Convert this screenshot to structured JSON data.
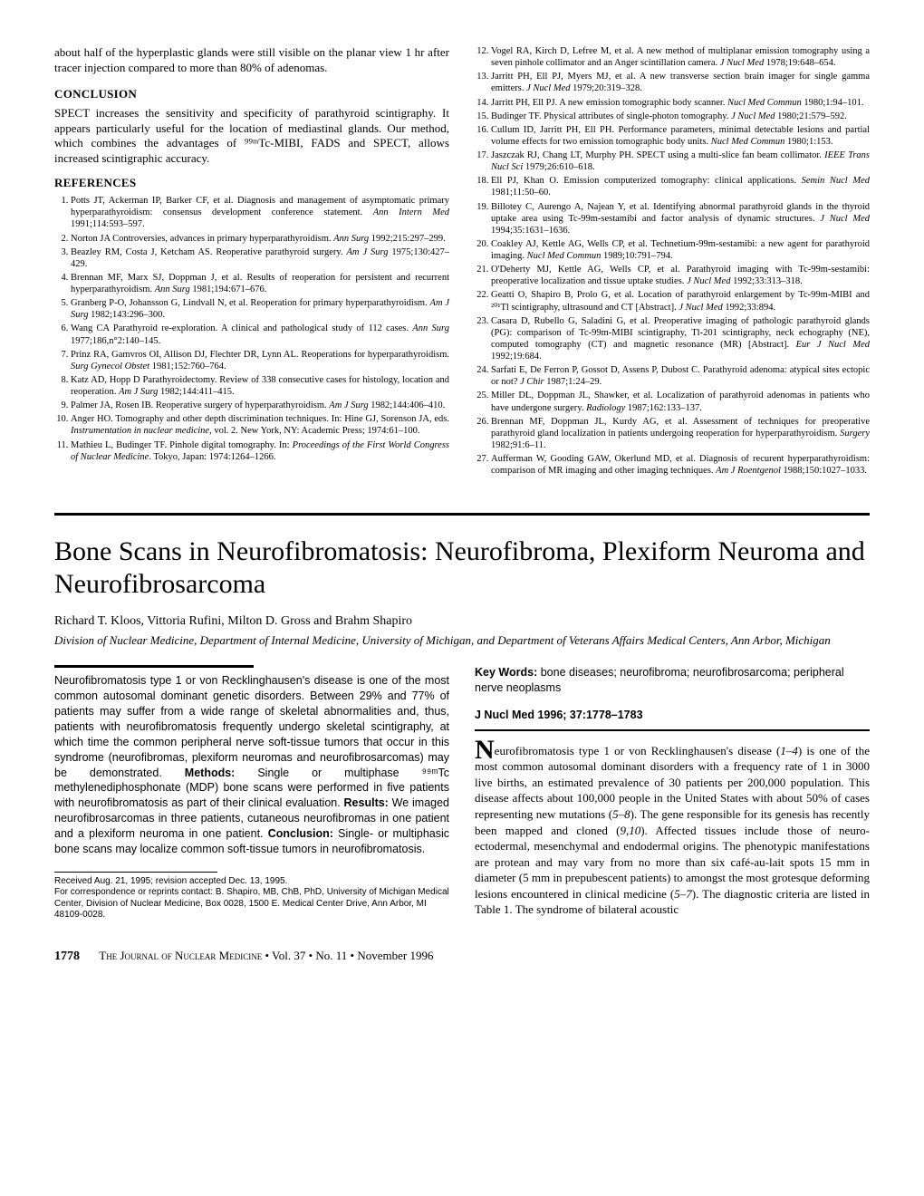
{
  "top": {
    "continuation": "about half of the hyperplastic glands were still visible on the planar view 1 hr after tracer injection compared to more than 80% of adenomas.",
    "conclusion_head": "CONCLUSION",
    "conclusion_text": "SPECT increases the sensitivity and specificity of parathyroid scintigraphy. It appears particularly useful for the location of mediastinal glands. Our method, which combines the advantages of ⁹⁹ᵐTc-MIBI, FADS and SPECT, allows increased scintigraphic accuracy.",
    "references_head": "REFERENCES",
    "refs": [
      "Potts JT, Ackerman IP, Barker CF, et al. Diagnosis and management of asymptomatic primary hyperparathyroidism: consensus development conference statement. Ann Intern Med 1991;114:593–597.",
      "Norton JA Controversies, advances in primary hyperparathyroidism. Ann Surg 1992;215:297–299.",
      "Beazley RM, Costa J, Ketcham AS. Reoperative parathyroid surgery. Am J Surg 1975;130:427–429.",
      "Brennan MF, Marx SJ, Doppman J, et al. Results of reoperation for persistent and recurrent hyperparathyroidism. Ann Surg 1981;194:671–676.",
      "Granberg P-O, Johansson G, Lindvall N, et al. Reoperation for primary hyperparathyroidism. Am J Surg 1982;143:296–300.",
      "Wang CA Parathyroid re-exploration. A clinical and pathological study of 112 cases. Ann Surg 1977;186,n°2:140–145.",
      "Prinz RA, Gamvros OI, Allison DJ, Flechter DR, Lynn AL. Reoperations for hyperparathyroidism. Surg Gynecol Obstet 1981;152:760–764.",
      "Katz AD, Hopp D Parathyroidectomy. Review of 338 consecutive cases for histology, location and reoperation. Am J Surg 1982;144:411–415.",
      "Palmer JA, Rosen IB. Reoperative surgery of hyperparathyroidism. Am J Surg 1982;144:406–410.",
      "Anger HO. Tomography and other depth discrimination techniques. In: Hine GJ, Sorenson JA, eds. Instrumentation in nuclear medicine, vol. 2. New York, NY: Academic Press; 1974:61–100.",
      "Mathieu L, Budinger TF. Pinhole digital tomography. In: Proceedings of the First World Congress of Nuclear Medicine. Tokyo, Japan: 1974:1264–1266.",
      "Vogel RA, Kirch D, Lefree M, et al. A new method of multiplanar emission tomography using a seven pinhole collimator and an Anger scintillation camera. J Nucl Med 1978;19:648–654.",
      "Jarritt PH, Ell PJ, Myers MJ, et al. A new transverse section brain imager for single gamma emitters. J Nucl Med 1979;20:319–328.",
      "Jarritt PH, Ell PJ. A new emission tomographic body scanner. Nucl Med Commun 1980;1:94–101.",
      "Budinger TF. Physical attributes of single-photon tomography. J Nucl Med 1980;21:579–592.",
      "Cullum ID, Jarritt PH, Ell PH. Performance parameters, minimal detectable lesions and partial volume effects for two emission tomographic body units. Nucl Med Commun 1980;1:153.",
      "Jaszczak RJ, Chang LT, Murphy PH. SPECT using a multi-slice fan beam collimator. IEEE Trans Nucl Sci 1979;26:610–618.",
      "Ell PJ, Khan O. Emission computerized tomography: clinical applications. Semin Nucl Med 1981;11:50–60.",
      "Billotey C, Aurengo A, Najean Y, et al. Identifying abnormal parathyroid glands in the thyroid uptake area using Tc-99m-sestamibi and factor analysis of dynamic structures. J Nucl Med 1994;35:1631–1636.",
      "Coakley AJ, Kettle AG, Wells CP, et al. Technetium-99m-sestamibi: a new agent for parathyroid imaging. Nucl Med Commun 1989;10:791–794.",
      "O'Deherty MJ, Kettle AG, Wells CP, et al. Parathyroid imaging with Tc-99m-sestamibi: preoperative localization and tissue uptake studies. J Nucl Med 1992;33:313–318.",
      "Geatti O, Shapiro B, Prolo G, et al. Location of parathyroid enlargement by Tc-99m-MIBI and ²⁰¹Tl scintigraphy, ultrasound and CT [Abstract]. J Nucl Med 1992;33:894.",
      "Casara D, Rubello G, Saladini G, et al. Preoperative imaging of pathologic parathyroid glands (PG): comparison of Tc-99m-MIBI scintigraphy, Tl-201 scintigraphy, neck echography (NE), computed tomography (CT) and magnetic resonance (MR) [Abstract]. Eur J Nucl Med 1992;19:684.",
      "Sarfati E, De Ferron P, Gossot D, Assens P, Dubost C. Parathyroid adenoma: atypical sites ectopic or not? J Chir 1987;1:24–29.",
      "Miller DL, Doppman JL, Shawker, et al. Localization of parathyroid adenomas in patients who have undergone surgery. Radiology 1987;162:133–137.",
      "Brennan MF, Doppman JL, Kurdy AG, et al. Assessment of techniques for preoperative parathyroid gland localization in patients undergoing reoperation for hyperparathyroidism. Surgery 1982;91:6–11.",
      "Aufferman W, Gooding GAW, Okerlund MD, et al. Diagnosis of recurent hyperparathyroidism: comparison of MR imaging and other imaging techniques. Am J Roentgenol 1988;150:1027–1033."
    ]
  },
  "article": {
    "title": "Bone Scans in Neurofibromatosis: Neurofibroma, Plexiform Neuroma and Neurofibrosarcoma",
    "authors": "Richard T. Kloos, Vittoria Rufini, Milton D. Gross and Brahm Shapiro",
    "affiliation": "Division of Nuclear Medicine, Department of Internal Medicine, University of Michigan, and Department of Veterans Affairs Medical Centers, Ann Arbor, Michigan",
    "abstract_html": "Neurofibromatosis type 1 or von Recklinghausen's disease is one of the most common autosomal dominant genetic disorders. Between 29% and 77% of patients may suffer from a wide range of skeletal abnormalities and, thus, patients with neurofibromatosis frequently undergo skeletal scintigraphy, at which time the common peripheral nerve soft-tissue tumors that occur in this syndrome (neurofibromas, plexiform neuromas and neurofibrosarcomas) may be demonstrated. <b>Methods:</b> Single or multiphase ⁹⁹ᵐTc methylenediphosphonate (MDP) bone scans were performed in five patients with neurofibromatosis as part of their clinical evaluation. <b>Results:</b> We imaged neurofibrosarcomas in three patients, cutaneous neurofibromas in one patient and a plexiform neuroma in one patient. <b>Conclusion:</b> Single- or multiphasic bone scans may localize common soft-tissue tumors in neurofibromatosis.",
    "keywords_label": "Key Words:",
    "keywords": " bone diseases; neurofibroma; neurofibrosarcoma; peripheral nerve neoplasms",
    "jref": "J Nucl Med 1996; 37:1778–1783",
    "intro_first_letter": "N",
    "intro_html": "eurofibromatosis type 1 or von Recklinghausen's disease (<i>1–4</i>) is one of the most common autosomal dominant disorders with a frequency rate of 1 in 3000 live births, an estimated prevalence of 30 patients per 200,000 population. This disease affects about 100,000 people in the United States with about 50% of cases representing new mutations (<i>5–8</i>). The gene responsible for its genesis has recently been mapped and cloned (<i>9,10</i>). Affected tissues include those of neuro-ectodermal, mesenchymal and endodermal origins. The phenotypic manifestations are protean and may vary from no more than six café-au-lait spots 15 mm in diameter (5 mm in prepubescent patients) to amongst the most grotesque deforming lesions encountered in clinical medicine (<i>5–7</i>). The diagnostic criteria are listed in Table 1. The syndrome of bilateral acoustic",
    "footnote1": "Received Aug. 21, 1995; revision accepted Dec. 13, 1995.",
    "footnote2": "For correspondence or reprints contact: B. Shapiro, MB, ChB, PhD, University of Michigan Medical Center, Division of Nuclear Medicine, Box 0028, 1500 E. Medical Center Drive, Ann Arbor, MI 48109-0028."
  },
  "footer": {
    "pagenum": "1778",
    "journal": "The Journal of Nuclear Medicine",
    "issue": " • Vol. 37 • No. 11 • November 1996"
  }
}
